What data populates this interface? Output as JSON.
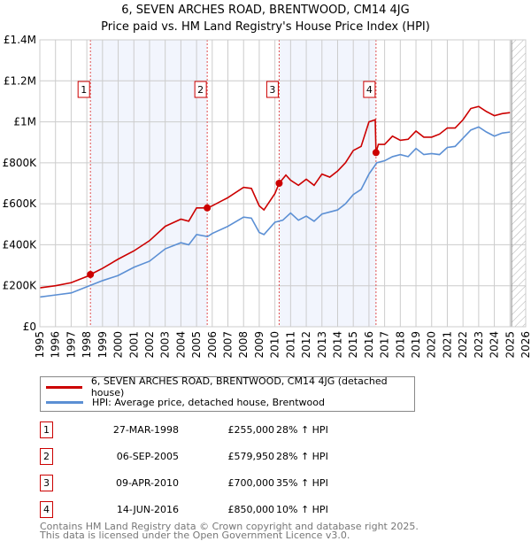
{
  "chart_data": {
    "type": "line",
    "title": "6, SEVEN ARCHES ROAD, BRENTWOOD, CM14 4JG",
    "subtitle": "Price paid vs. HM Land Registry's House Price Index (HPI)",
    "xlim": [
      1995,
      2026
    ],
    "ylim": [
      0,
      1400000
    ],
    "yticks": [
      0,
      200000,
      400000,
      600000,
      800000,
      1000000,
      1200000,
      1400000
    ],
    "ytick_labels": [
      "£0",
      "£200K",
      "£400K",
      "£600K",
      "£800K",
      "£1M",
      "£1.2M",
      "£1.4M"
    ],
    "xticks": [
      1995,
      1996,
      1997,
      1998,
      1999,
      2000,
      2001,
      2002,
      2003,
      2004,
      2005,
      2006,
      2007,
      2008,
      2009,
      2010,
      2011,
      2012,
      2013,
      2014,
      2015,
      2016,
      2017,
      2018,
      2019,
      2020,
      2021,
      2022,
      2023,
      2024,
      2025,
      2026
    ],
    "grid": true,
    "forecast_hatch_from": 2025.1,
    "shaded_bands": [
      [
        1998.23,
        2005.68
      ],
      [
        2010.27,
        2016.45
      ]
    ],
    "series": [
      {
        "name": "6, SEVEN ARCHES ROAD, BRENTWOOD, CM14 4JG (detached house)",
        "color": "#cc0000",
        "x": [
          1995,
          1996,
          1997,
          1998,
          1998.23,
          1999,
          2000,
          2001,
          2002,
          2003,
          2004,
          2004.5,
          2005,
          2005.68,
          2006,
          2007,
          2008,
          2008.5,
          2009,
          2009.3,
          2010,
          2010.27,
          2010.7,
          2011,
          2011.5,
          2012,
          2012.5,
          2013,
          2013.5,
          2014,
          2014.5,
          2015,
          2015.5,
          2016,
          2016.4,
          2016.45,
          2016.6,
          2017,
          2017.5,
          2018,
          2018.5,
          2019,
          2019.5,
          2020,
          2020.5,
          2021,
          2021.5,
          2022,
          2022.5,
          2023,
          2023.5,
          2024,
          2024.5,
          2025
        ],
        "y": [
          190000,
          200000,
          215000,
          245000,
          255000,
          285000,
          330000,
          370000,
          420000,
          490000,
          525000,
          515000,
          580000,
          580000,
          590000,
          630000,
          680000,
          675000,
          590000,
          570000,
          650000,
          700000,
          740000,
          715000,
          690000,
          720000,
          690000,
          745000,
          730000,
          760000,
          800000,
          860000,
          880000,
          1000000,
          1010000,
          850000,
          890000,
          890000,
          930000,
          910000,
          915000,
          955000,
          925000,
          925000,
          940000,
          970000,
          970000,
          1010000,
          1065000,
          1075000,
          1050000,
          1030000,
          1040000,
          1045000
        ]
      },
      {
        "name": "HPI: Average price, detached house, Brentwood",
        "color": "#5b8fd4",
        "x": [
          1995,
          1996,
          1997,
          1998,
          1999,
          2000,
          2001,
          2002,
          2003,
          2004,
          2004.5,
          2005,
          2005.7,
          2006,
          2007,
          2008,
          2008.5,
          2009,
          2009.3,
          2010,
          2010.5,
          2011,
          2011.5,
          2012,
          2012.5,
          2013,
          2014,
          2014.5,
          2015,
          2015.5,
          2016,
          2016.5,
          2017,
          2017.5,
          2018,
          2018.5,
          2019,
          2019.5,
          2020,
          2020.5,
          2021,
          2021.5,
          2022,
          2022.5,
          2023,
          2023.5,
          2024,
          2024.5,
          2025
        ],
        "y": [
          145000,
          155000,
          165000,
          195000,
          225000,
          250000,
          290000,
          320000,
          380000,
          410000,
          400000,
          450000,
          440000,
          455000,
          490000,
          535000,
          530000,
          460000,
          450000,
          510000,
          520000,
          555000,
          520000,
          540000,
          515000,
          550000,
          570000,
          600000,
          645000,
          670000,
          745000,
          800000,
          810000,
          830000,
          840000,
          830000,
          870000,
          840000,
          845000,
          840000,
          875000,
          880000,
          920000,
          960000,
          975000,
          950000,
          930000,
          945000,
          950000
        ]
      }
    ],
    "sales": [
      {
        "label": "1",
        "x": 1998.23,
        "y": 255000,
        "date": "27-MAR-1998",
        "price": "£255,000",
        "hpi": "28% ↑ HPI"
      },
      {
        "label": "2",
        "x": 2005.68,
        "y": 579950,
        "date": "06-SEP-2005",
        "price": "£579,950",
        "hpi": "28% ↑ HPI"
      },
      {
        "label": "3",
        "x": 2010.27,
        "y": 700000,
        "date": "09-APR-2010",
        "price": "£700,000",
        "hpi": "35% ↑ HPI"
      },
      {
        "label": "4",
        "x": 2016.45,
        "y": 850000,
        "date": "14-JUN-2016",
        "price": "£850,000",
        "hpi": "10% ↑ HPI"
      }
    ]
  },
  "footer": {
    "line1": "Contains HM Land Registry data © Crown copyright and database right 2025.",
    "line2": "This data is licensed under the Open Government Licence v3.0."
  }
}
